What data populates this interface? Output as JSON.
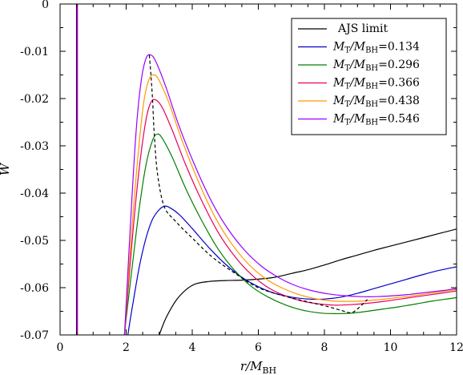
{
  "chart_data": {
    "type": "line",
    "xlabel": "r/M_BH",
    "xlabel_main": "r/M",
    "xlabel_sub": "BH",
    "ylabel": "W",
    "xlim": [
      0,
      12
    ],
    "ylim": [
      -0.07,
      0
    ],
    "xticks": [
      0,
      2,
      4,
      6,
      8,
      10,
      12
    ],
    "yticks": [
      0,
      -0.01,
      -0.02,
      -0.03,
      -0.04,
      -0.05,
      -0.06,
      -0.07
    ],
    "xtick_labels": [
      "0",
      "2",
      "4",
      "6",
      "8",
      "10",
      "12"
    ],
    "ytick_labels": [
      "0",
      "-0.01",
      "-0.02",
      "-0.03",
      "-0.04",
      "-0.05",
      "-0.06",
      "-0.07"
    ],
    "legend_position": "top-right",
    "vertical_line": {
      "x": 0.5,
      "colors": [
        "#0000cc",
        "#cc0066"
      ]
    },
    "series": [
      {
        "name": "AJS limit",
        "legend_main": "AJS limit",
        "color": "#000000",
        "dash": false,
        "x": [
          3.0,
          3.2,
          3.5,
          3.8,
          4.1,
          4.5,
          5.0,
          5.5,
          6.0,
          6.5,
          7.0,
          7.5,
          8.0,
          8.5,
          9.0,
          9.5,
          10.0,
          10.5,
          11.0,
          11.5,
          12.0
        ],
        "y": [
          -0.07,
          -0.0665,
          -0.0628,
          -0.0605,
          -0.0592,
          -0.0587,
          -0.0585,
          -0.0584,
          -0.0582,
          -0.0578,
          -0.057,
          -0.0562,
          -0.0552,
          -0.0541,
          -0.0531,
          -0.0521,
          -0.0512,
          -0.0503,
          -0.0494,
          -0.0485,
          -0.0476
        ]
      },
      {
        "name": "M_T/M_BH=0.134",
        "legend_main": "M",
        "legend_sub1": "T",
        "legend_mid": "/M",
        "legend_sub2": "BH",
        "legend_val": "=0.134",
        "color": "#0000cc",
        "dash": false,
        "x": [
          2.05,
          2.2,
          2.4,
          2.6,
          2.8,
          3.0,
          3.15,
          3.3,
          3.6,
          4.0,
          4.5,
          5.0,
          5.5,
          6.0,
          6.5,
          7.0,
          7.5,
          8.0,
          8.5,
          9.0,
          9.5,
          10.0,
          10.5,
          11.0,
          11.5,
          12.0
        ],
        "y": [
          -0.07,
          -0.0635,
          -0.0555,
          -0.0495,
          -0.0455,
          -0.0435,
          -0.0428,
          -0.043,
          -0.0445,
          -0.0475,
          -0.0515,
          -0.055,
          -0.0578,
          -0.0598,
          -0.0612,
          -0.062,
          -0.0624,
          -0.0624,
          -0.062,
          -0.0612,
          -0.0602,
          -0.0592,
          -0.0582,
          -0.0572,
          -0.0563,
          -0.0556
        ]
      },
      {
        "name": "M_T/M_BH=0.296",
        "legend_main": "M",
        "legend_sub1": "T",
        "legend_mid": "/M",
        "legend_sub2": "BH",
        "legend_val": "=0.296",
        "color": "#008000",
        "dash": false,
        "x": [
          1.95,
          2.0,
          2.2,
          2.4,
          2.6,
          2.8,
          2.95,
          3.1,
          3.4,
          3.8,
          4.3,
          4.8,
          5.3,
          5.8,
          6.3,
          6.8,
          7.3,
          7.8,
          8.3,
          8.8,
          9.3,
          9.8,
          10.3,
          10.8,
          11.3,
          11.8,
          12.0
        ],
        "y": [
          -0.07,
          -0.0665,
          -0.0545,
          -0.043,
          -0.034,
          -0.0288,
          -0.0275,
          -0.0285,
          -0.0325,
          -0.039,
          -0.046,
          -0.052,
          -0.0565,
          -0.0598,
          -0.062,
          -0.0636,
          -0.0647,
          -0.0653,
          -0.0655,
          -0.0654,
          -0.065,
          -0.0645,
          -0.064,
          -0.0634,
          -0.0628,
          -0.0623,
          -0.0621
        ]
      },
      {
        "name": "M_T/M_BH=0.366",
        "legend_main": "M",
        "legend_sub1": "T",
        "legend_mid": "/M",
        "legend_sub2": "BH",
        "legend_val": "=0.366",
        "color": "#e6005c",
        "dash": false,
        "x": [
          1.95,
          2.0,
          2.2,
          2.4,
          2.6,
          2.75,
          2.9,
          3.1,
          3.4,
          3.8,
          4.3,
          4.8,
          5.3,
          5.8,
          6.3,
          6.8,
          7.3,
          7.8,
          8.3,
          8.8,
          9.3,
          9.8,
          10.3,
          10.8,
          11.3,
          11.8,
          12.0
        ],
        "y": [
          -0.07,
          -0.0655,
          -0.0485,
          -0.0345,
          -0.0245,
          -0.0208,
          -0.0203,
          -0.022,
          -0.0268,
          -0.034,
          -0.0418,
          -0.0485,
          -0.0535,
          -0.0573,
          -0.06,
          -0.0617,
          -0.0628,
          -0.0634,
          -0.0637,
          -0.0636,
          -0.0633,
          -0.0629,
          -0.0624,
          -0.0619,
          -0.0614,
          -0.0609,
          -0.0607
        ]
      },
      {
        "name": "M_T/M_BH=0.438",
        "legend_main": "M",
        "legend_sub1": "T",
        "legend_mid": "/M",
        "legend_sub2": "BH",
        "legend_val": "=0.438",
        "color": "#ff9900",
        "dash": false,
        "x": [
          1.95,
          2.0,
          2.2,
          2.4,
          2.55,
          2.7,
          2.85,
          3.0,
          3.3,
          3.7,
          4.2,
          4.7,
          5.2,
          5.7,
          6.2,
          6.7,
          7.2,
          7.7,
          8.2,
          8.7,
          9.2,
          9.7,
          10.2,
          10.7,
          11.2,
          11.7,
          12.0
        ],
        "y": [
          -0.07,
          -0.0645,
          -0.045,
          -0.029,
          -0.02,
          -0.0158,
          -0.015,
          -0.0162,
          -0.021,
          -0.029,
          -0.0378,
          -0.0452,
          -0.0508,
          -0.055,
          -0.058,
          -0.06,
          -0.0614,
          -0.0623,
          -0.0628,
          -0.0629,
          -0.0628,
          -0.0625,
          -0.0621,
          -0.0617,
          -0.0612,
          -0.0607,
          -0.0604
        ]
      },
      {
        "name": "M_T/M_BH=0.546",
        "legend_main": "M",
        "legend_sub1": "T",
        "legend_mid": "/M",
        "legend_sub2": "BH",
        "legend_val": "=0.546",
        "color": "#9900ff",
        "dash": false,
        "x": [
          1.95,
          2.0,
          2.15,
          2.3,
          2.45,
          2.6,
          2.75,
          2.9,
          3.2,
          3.6,
          4.1,
          4.6,
          5.1,
          5.6,
          6.1,
          6.6,
          7.1,
          7.6,
          8.1,
          8.6,
          9.1,
          9.6,
          10.1,
          10.6,
          11.1,
          11.6,
          12.0
        ],
        "y": [
          -0.07,
          -0.0635,
          -0.044,
          -0.027,
          -0.0165,
          -0.0115,
          -0.0108,
          -0.0122,
          -0.0175,
          -0.0258,
          -0.0345,
          -0.042,
          -0.0478,
          -0.0522,
          -0.0555,
          -0.0578,
          -0.0595,
          -0.0606,
          -0.0613,
          -0.0617,
          -0.0619,
          -0.0619,
          -0.0617,
          -0.0614,
          -0.061,
          -0.0606,
          -0.0602
        ]
      },
      {
        "name": "",
        "color": "#000000",
        "dash": true,
        "in_legend": false,
        "x": [
          2.7,
          2.75,
          2.8,
          2.85,
          2.95,
          3.15,
          3.5,
          4.0,
          4.6,
          5.3,
          6.0,
          6.8,
          7.5,
          8.1,
          8.5,
          8.8,
          9.0,
          9.3
        ],
        "y": [
          -0.0108,
          -0.015,
          -0.0203,
          -0.0275,
          -0.036,
          -0.0428,
          -0.046,
          -0.0495,
          -0.0535,
          -0.057,
          -0.06,
          -0.0618,
          -0.063,
          -0.064,
          -0.0648,
          -0.0653,
          -0.0645,
          -0.0625
        ]
      }
    ]
  }
}
